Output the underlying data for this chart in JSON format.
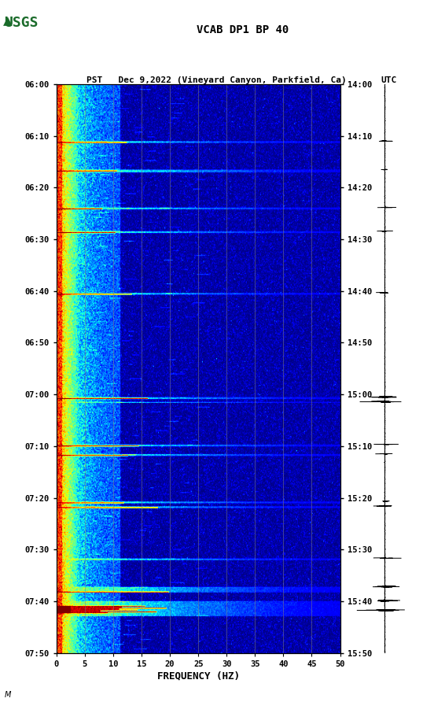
{
  "title_line1": "VCAB DP1 BP 40",
  "title_line2_left": "PST   Dec 9,2022 (Vineyard Canyon, Parkfield, Ca)",
  "title_line2_right": "UTC",
  "xlabel": "FREQUENCY (HZ)",
  "ylabel_left_ticks": [
    "06:00",
    "06:10",
    "06:20",
    "06:30",
    "06:40",
    "06:50",
    "07:00",
    "07:10",
    "07:20",
    "07:30",
    "07:40",
    "07:50"
  ],
  "ylabel_right_ticks": [
    "14:00",
    "14:10",
    "14:20",
    "14:30",
    "14:40",
    "14:50",
    "15:00",
    "15:10",
    "15:20",
    "15:30",
    "15:40",
    "15:50"
  ],
  "xticks": [
    0,
    5,
    10,
    15,
    20,
    25,
    30,
    35,
    40,
    45,
    50
  ],
  "freq_max": 50,
  "n_time": 600,
  "n_freq": 400,
  "bg_color": "#ffffff",
  "spectrogram_cmap": "jet",
  "grid_color": "#808080",
  "grid_alpha": 0.6,
  "usgs_logo_color": "#1a6b2a",
  "seed": 12345,
  "event_rows_bright": [
    60,
    61,
    90,
    91,
    92,
    130,
    131,
    155,
    156,
    220,
    221,
    330,
    331,
    335,
    380,
    381,
    390,
    391,
    440,
    441,
    445,
    446,
    500,
    501,
    530,
    531,
    532,
    533,
    534,
    535,
    545,
    546,
    547,
    548,
    549,
    550,
    551,
    552,
    553,
    554,
    555,
    556,
    557,
    558,
    559,
    560
  ],
  "event_rows_dark": [
    61,
    91,
    131,
    156,
    221,
    331,
    381,
    391,
    441,
    446,
    535,
    550,
    551,
    552,
    553,
    554,
    555,
    556,
    557
  ],
  "waveform_events": [
    60,
    90,
    130,
    155,
    220,
    330,
    335,
    380,
    390,
    440,
    445,
    500,
    530,
    545,
    555
  ]
}
